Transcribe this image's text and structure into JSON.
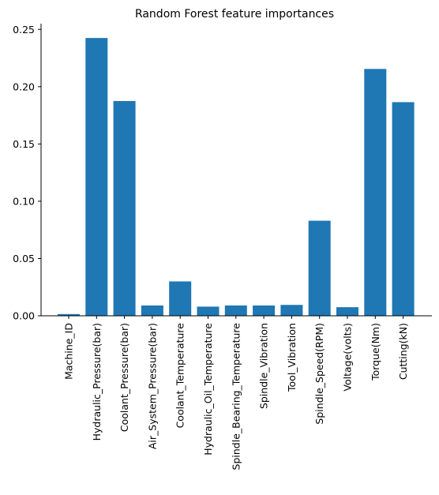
{
  "chart_data": {
    "type": "bar",
    "title": "Random Forest feature importances",
    "xlabel": "",
    "ylabel": "",
    "categories": [
      "Machine_ID",
      "Hydraulic_Pressure(bar)",
      "Coolant_Pressure(bar)",
      "Air_System_Pressure(bar)",
      "Coolant_Temperature",
      "Hydraulic_Oil_Temperature",
      "Spindle_Bearing_Temperature",
      "Spindle_Vibration",
      "Tool_Vibration",
      "Spindle_Speed(RPM)",
      "Voltage(volts)",
      "Torque(Nm)",
      "Cutting(kN)"
    ],
    "values": [
      0.0015,
      0.2425,
      0.1875,
      0.009,
      0.03,
      0.008,
      0.009,
      0.009,
      0.0095,
      0.083,
      0.0075,
      0.2155,
      0.1865
    ],
    "ylim": [
      0,
      0.255
    ],
    "yticks": [
      "0.00",
      "0.05",
      "0.10",
      "0.15",
      "0.20",
      "0.25"
    ],
    "ytick_values": [
      0,
      0.05,
      0.1,
      0.15,
      0.2,
      0.25
    ],
    "grid": false,
    "legend": "none",
    "bar_color": "#1f77b4"
  }
}
